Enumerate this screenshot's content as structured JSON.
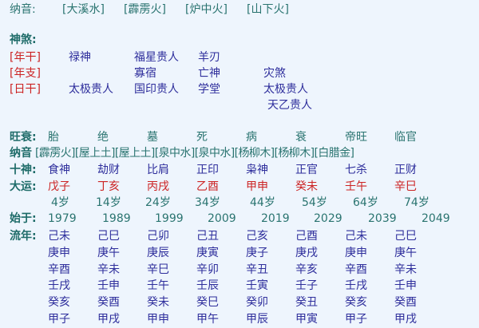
{
  "top_nayin": {
    "label": "纳音:",
    "items": [
      "[大溪水]",
      "[霹雳火]",
      "[炉中火]",
      "[山下火]"
    ]
  },
  "shensha": {
    "label": "神煞:",
    "rows": [
      {
        "label": "[年干]",
        "items": [
          "禄神",
          "福星贵人",
          "羊刃",
          ""
        ]
      },
      {
        "label": "[年支]",
        "items": [
          "",
          "寡宿",
          "亡神",
          "灾煞"
        ]
      },
      {
        "label": "[日干]",
        "items": [
          "太极贵人",
          "国印贵人",
          "学堂",
          "太极贵人"
        ]
      },
      {
        "label": "",
        "items": [
          "",
          "",
          "",
          "天乙贵人"
        ]
      }
    ]
  },
  "wangshuai": {
    "label": "旺衰:",
    "items": [
      "胎",
      "绝",
      "墓",
      "死",
      "病",
      "衰",
      "帝旺",
      "临官"
    ]
  },
  "nayin": {
    "label": "纳音",
    "text": "[霹雳火][屋上土][屋上土][泉中水][泉中水][杨柳木][杨柳木][白腊金]"
  },
  "shishen": {
    "label": "十神:",
    "items": [
      "食神",
      "劫财",
      "比肩",
      "正印",
      "枭神",
      "正官",
      "七杀",
      "正财"
    ]
  },
  "dayun": {
    "label": "大运:",
    "items": [
      "戊子",
      "丁亥",
      "丙戌",
      "乙酉",
      "甲申",
      "癸未",
      "壬午",
      "辛巳"
    ],
    "ages": [
      "4岁",
      "14岁",
      "24岁",
      "34岁",
      "44岁",
      "54岁",
      "64岁",
      "74岁"
    ]
  },
  "shiyu": {
    "label": "始于:",
    "items": [
      "1979",
      "1989",
      "1999",
      "2009",
      "2019",
      "2029",
      "2039",
      "2049"
    ]
  },
  "liunian": {
    "label": "流年:",
    "rows": [
      [
        "己未",
        "己巳",
        "己卯",
        "己丑",
        "己亥",
        "己酉",
        "己未",
        "己巳"
      ],
      [
        "庚申",
        "庚午",
        "庚辰",
        "庚寅",
        "庚子",
        "庚戌",
        "庚申",
        "庚午"
      ],
      [
        "辛酉",
        "辛未",
        "辛巳",
        "辛卯",
        "辛丑",
        "辛亥",
        "辛酉",
        "辛未"
      ],
      [
        "壬戌",
        "壬申",
        "壬午",
        "壬辰",
        "壬寅",
        "壬子",
        "壬戌",
        "壬申"
      ],
      [
        "癸亥",
        "癸酉",
        "癸未",
        "癸巳",
        "癸卯",
        "癸丑",
        "癸亥",
        "癸酉"
      ],
      [
        "甲子",
        "甲戌",
        "甲申",
        "甲午",
        "甲辰",
        "甲寅",
        "甲子",
        "甲戌"
      ]
    ]
  },
  "colors": {
    "label": "#1d6b68",
    "blue": "#2e2e9c",
    "red": "#cc2424",
    "background": "#eef5fd"
  }
}
